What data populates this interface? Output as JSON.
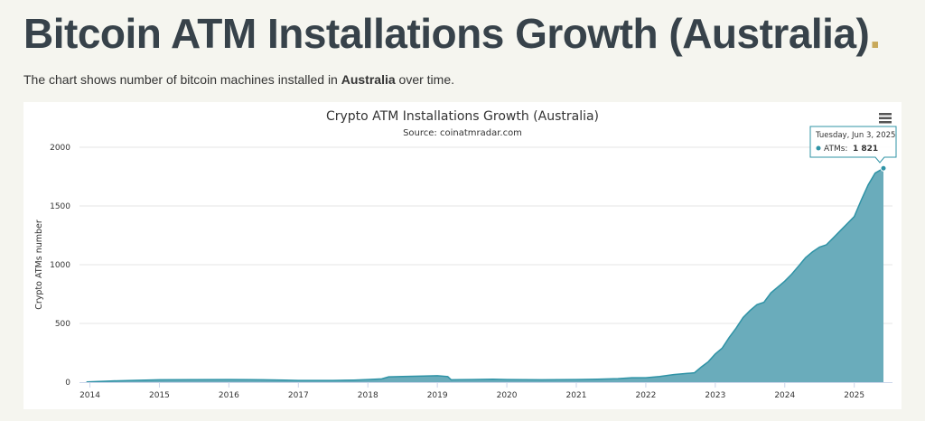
{
  "page": {
    "title": "Bitcoin ATM Installations Growth (Australia)",
    "title_dot": ".",
    "subtitle_prefix": "The chart shows number of bitcoin machines installed in ",
    "subtitle_country": "Australia",
    "subtitle_suffix": " over time."
  },
  "colors": {
    "area_fill": "#6aacbb",
    "area_line": "#2f93a6",
    "grid": "#e6e6e6",
    "tooltip_border": "#2f93a6"
  },
  "menu_icon": "hamburger-menu-icon",
  "tooltip": {
    "date": "Tuesday, Jun 3, 2025",
    "series_label": "ATMs:",
    "value_label": "1 821"
  },
  "chart_data": {
    "type": "area",
    "title": "Crypto ATM Installations Growth (Australia)",
    "subtitle": "Source: coinatmradar.com",
    "ylabel": "Crypto ATMs number",
    "xlabel": "",
    "ylim": [
      0,
      2000
    ],
    "yticks": [
      0,
      500,
      1000,
      1500,
      2000
    ],
    "xticks": [
      "2014",
      "2015",
      "2016",
      "2017",
      "2018",
      "2019",
      "2020",
      "2021",
      "2022",
      "2023",
      "2024",
      "2025"
    ],
    "xlim": [
      2013.85,
      2025.55
    ],
    "grid": true,
    "legend": "none",
    "series": [
      {
        "name": "ATMs",
        "x": [
          2013.95,
          2014.3,
          2014.6,
          2014.8,
          2015.0,
          2015.5,
          2016.0,
          2016.3,
          2016.5,
          2016.8,
          2017.0,
          2017.5,
          2017.8,
          2018.0,
          2018.2,
          2018.3,
          2018.5,
          2018.8,
          2019.0,
          2019.15,
          2019.2,
          2019.5,
          2019.8,
          2020.0,
          2020.5,
          2021.0,
          2021.3,
          2021.6,
          2021.8,
          2022.0,
          2022.2,
          2022.4,
          2022.6,
          2022.7,
          2022.8,
          2022.9,
          2023.0,
          2023.1,
          2023.2,
          2023.3,
          2023.4,
          2023.5,
          2023.6,
          2023.7,
          2023.8,
          2023.9,
          2024.0,
          2024.1,
          2024.2,
          2024.3,
          2024.4,
          2024.5,
          2024.6,
          2024.7,
          2024.8,
          2024.9,
          2025.0,
          2025.1,
          2025.2,
          2025.3,
          2025.42
        ],
        "y": [
          2,
          10,
          15,
          18,
          20,
          21,
          22,
          21,
          20,
          18,
          15,
          15,
          18,
          22,
          28,
          45,
          48,
          52,
          55,
          48,
          20,
          22,
          25,
          22,
          20,
          22,
          25,
          30,
          38,
          38,
          48,
          65,
          75,
          80,
          130,
          175,
          240,
          290,
          380,
          460,
          550,
          610,
          660,
          680,
          760,
          810,
          860,
          920,
          990,
          1060,
          1110,
          1150,
          1170,
          1230,
          1290,
          1350,
          1410,
          1550,
          1680,
          1780,
          1821
        ]
      }
    ],
    "highlight_point": {
      "x": 2025.42,
      "y": 1821
    }
  }
}
